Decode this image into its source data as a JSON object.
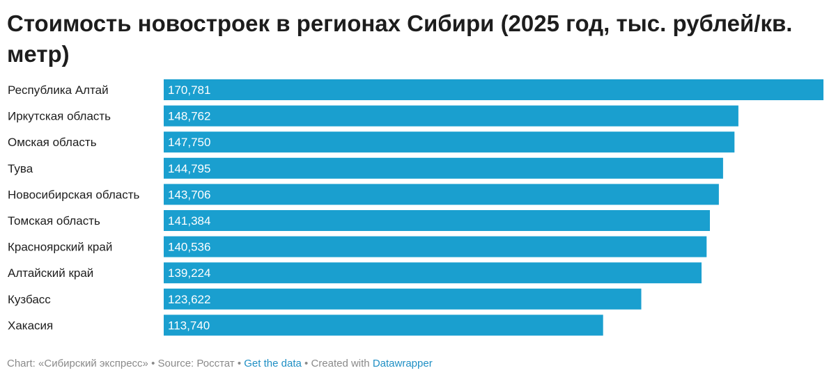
{
  "chart_data": {
    "type": "bar",
    "orientation": "horizontal",
    "title": "Стоимость новостроек в регионах Сибири (2025 год, тыс. рублей/кв. метр)",
    "categories": [
      "Республика Алтай",
      "Иркутская область",
      "Омская область",
      "Тува",
      "Новосибирская область",
      "Томская область",
      "Красноярский край",
      "Алтайский край",
      "Кузбасс",
      "Хакасия"
    ],
    "values": [
      170.781,
      148.762,
      147.75,
      144.795,
      143.706,
      141.384,
      140.536,
      139.224,
      123.622,
      113.74
    ],
    "value_labels": [
      "170,781",
      "148,762",
      "147,750",
      "144,795",
      "143,706",
      "141,384",
      "140,536",
      "139,224",
      "123,622",
      "113,740"
    ],
    "xlim": [
      0,
      170.781
    ],
    "bar_color": "#1a9fcf",
    "label_color": "#ffffff",
    "grid": false,
    "legend": "none"
  },
  "footer": {
    "chart_credit": "Chart: «Сибирский экспресс»",
    "source": "Source: Росстат",
    "get_data_label": "Get the data",
    "created_with": "Created with",
    "tool_name": "Datawrapper",
    "separator": "•"
  }
}
